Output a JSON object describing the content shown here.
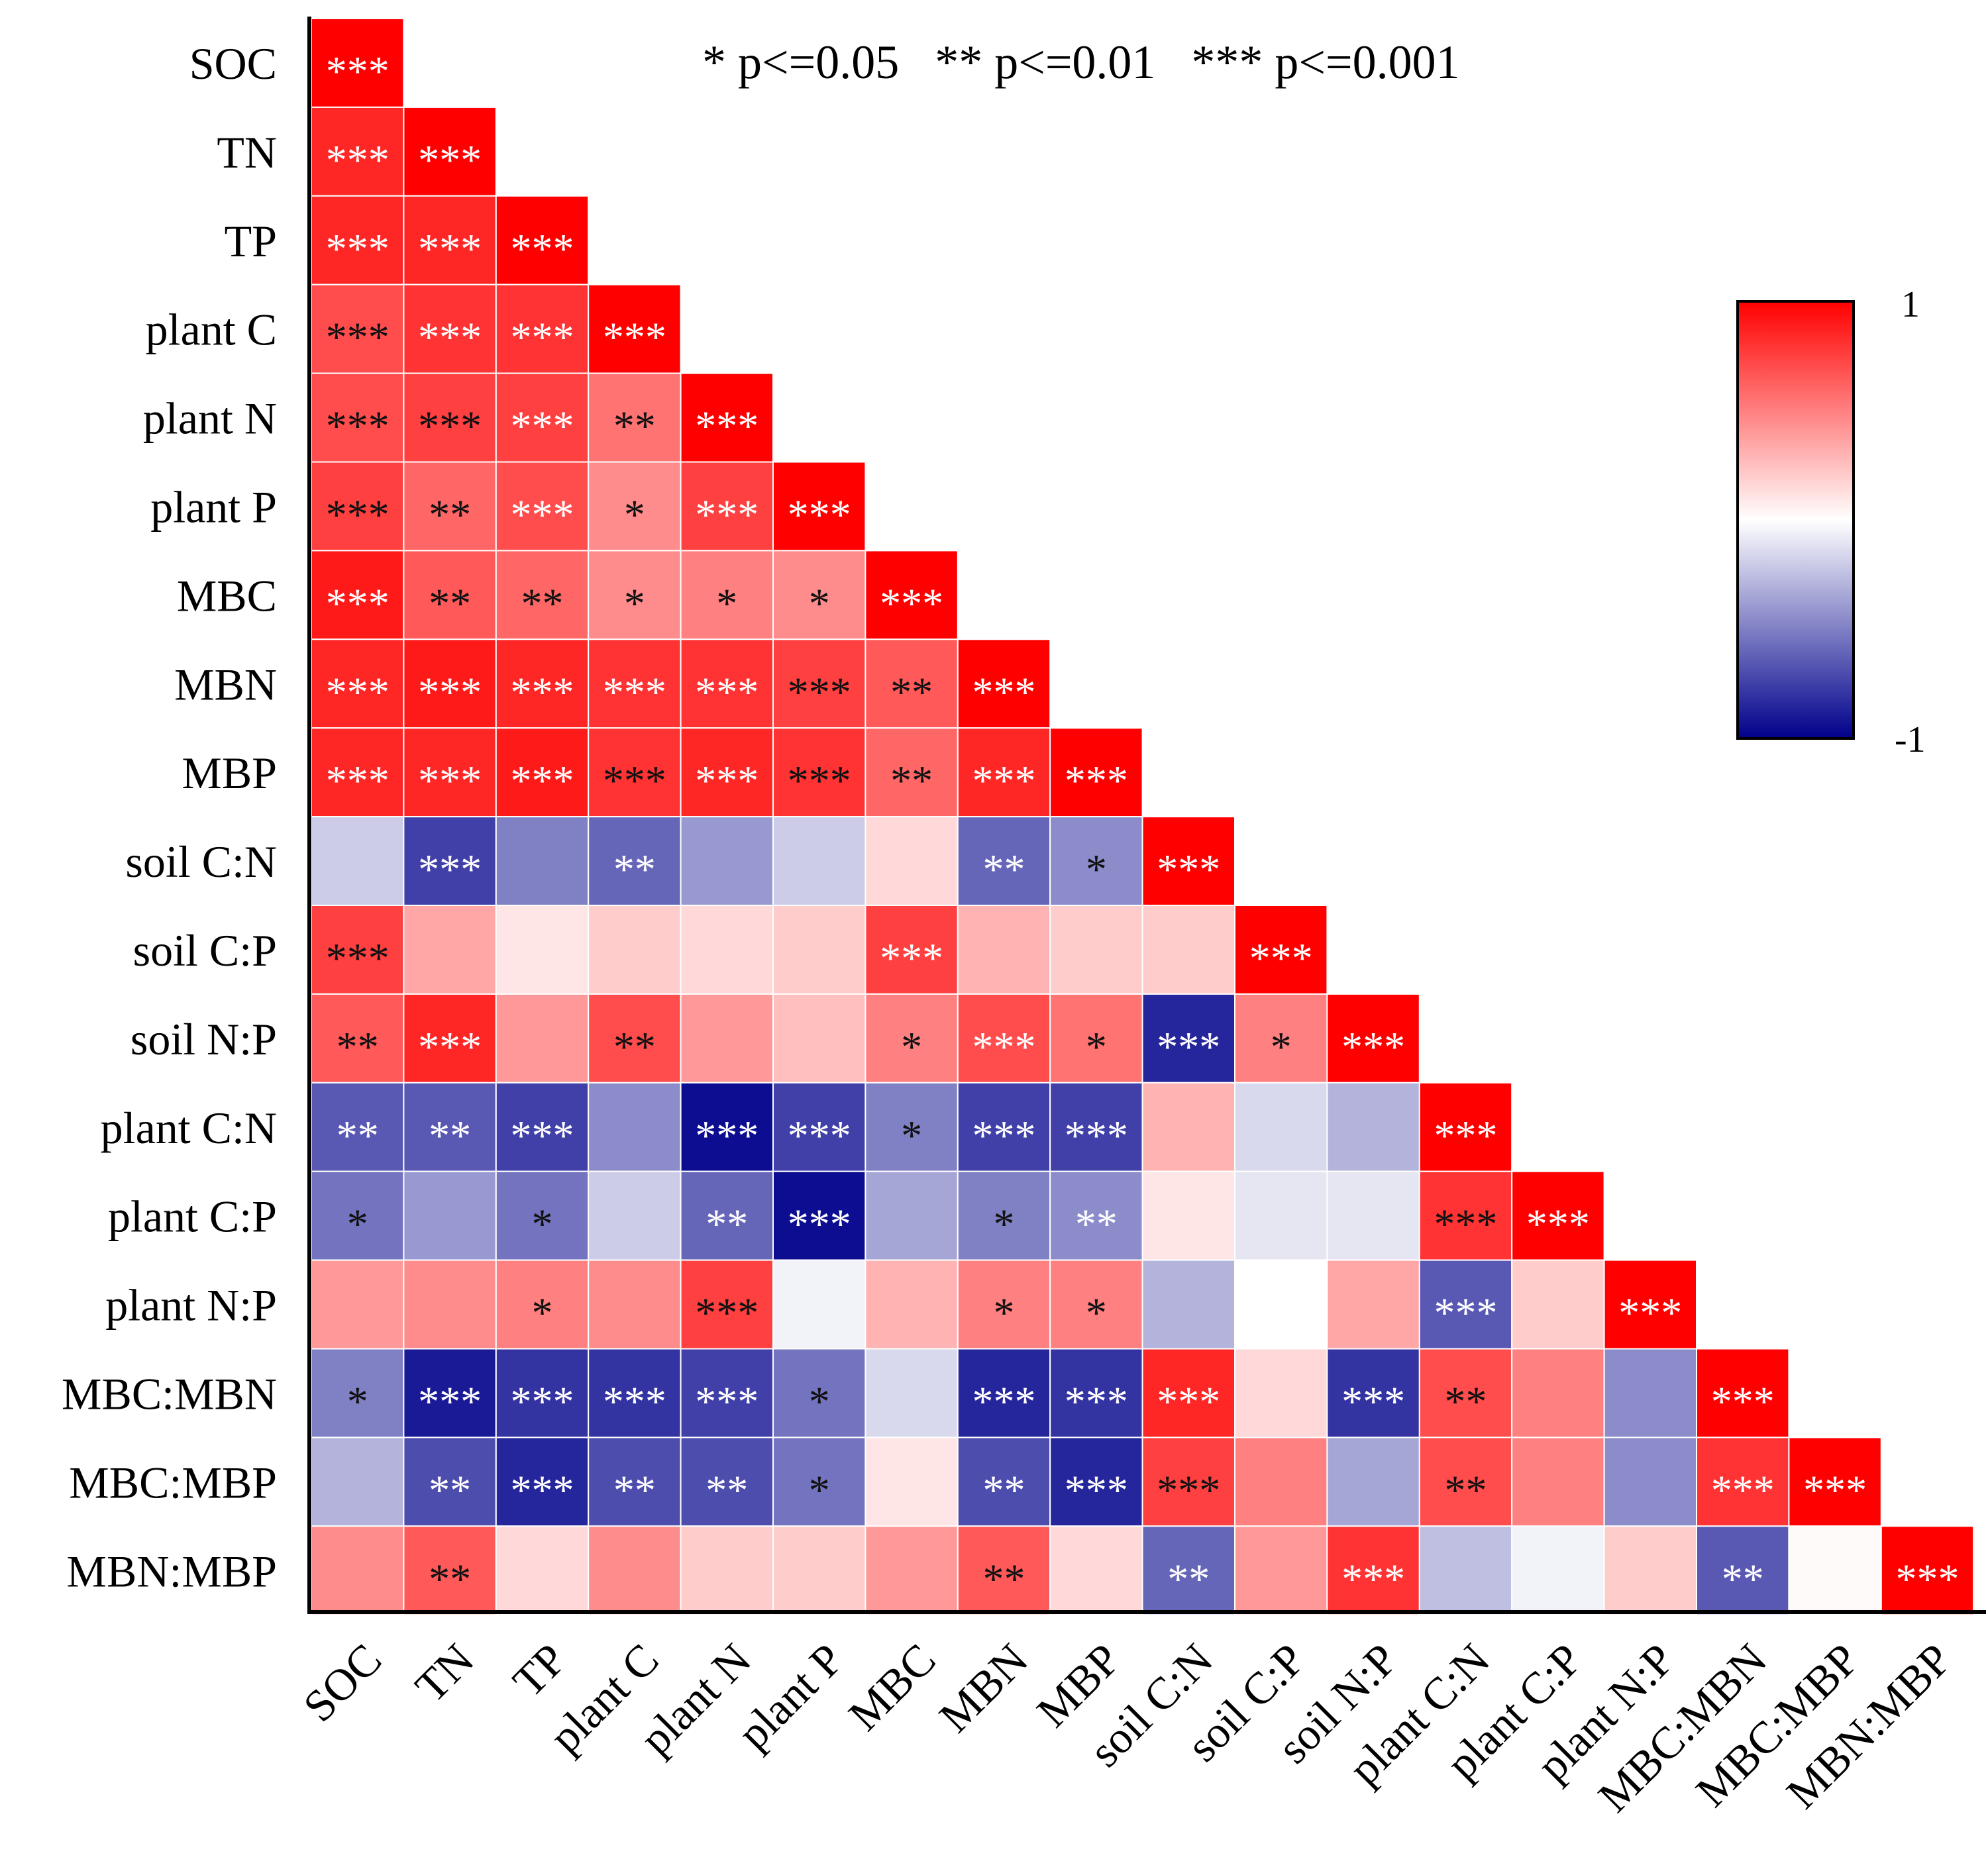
{
  "chart_data": {
    "type": "heatmap",
    "title": "",
    "legend_text": "* p<=0.05   ** p<=0.01   *** p<=0.001",
    "colorbar": {
      "max_label": "1",
      "min_label": "-1",
      "range": [
        -1,
        1
      ],
      "colors": [
        "#00008b",
        "#ffffff",
        "#ff0000"
      ]
    },
    "labels": [
      "SOC",
      "TN",
      "TP",
      "plant C",
      "plant N",
      "plant P",
      "MBC",
      "MBN",
      "MBP",
      "soil C:N",
      "soil C:P",
      "soil N:P",
      "plant C:N",
      "plant C:P",
      "plant N:P",
      "MBC:MBN",
      "MBC:MBP",
      "MBN:MBP"
    ],
    "matrix": [
      [
        1.0
      ],
      [
        0.85,
        1.0
      ],
      [
        0.85,
        0.85,
        1.0
      ],
      [
        0.7,
        0.8,
        0.8,
        1.0
      ],
      [
        0.7,
        0.75,
        0.75,
        0.55,
        1.0
      ],
      [
        0.75,
        0.6,
        0.7,
        0.45,
        0.75,
        1.0
      ],
      [
        0.9,
        0.65,
        0.6,
        0.45,
        0.5,
        0.45,
        1.0
      ],
      [
        0.85,
        0.9,
        0.85,
        0.8,
        0.8,
        0.75,
        0.65,
        1.0
      ],
      [
        0.85,
        0.85,
        0.9,
        0.8,
        0.85,
        0.8,
        0.6,
        0.85,
        1.0
      ],
      [
        -0.2,
        -0.75,
        -0.5,
        -0.6,
        -0.4,
        -0.2,
        0.15,
        -0.6,
        -0.45,
        1.0
      ],
      [
        0.75,
        0.35,
        0.1,
        0.2,
        0.15,
        0.2,
        0.75,
        0.3,
        0.2,
        0.2,
        1.0
      ],
      [
        0.65,
        0.85,
        0.4,
        0.7,
        0.4,
        0.25,
        0.5,
        0.7,
        0.55,
        -0.85,
        0.5,
        1.0
      ],
      [
        -0.65,
        -0.65,
        -0.75,
        -0.45,
        -0.95,
        -0.75,
        -0.5,
        -0.75,
        -0.75,
        0.3,
        -0.15,
        -0.3,
        1.0
      ],
      [
        -0.55,
        -0.4,
        -0.55,
        -0.2,
        -0.6,
        -0.95,
        -0.35,
        -0.5,
        -0.45,
        0.1,
        -0.1,
        -0.1,
        0.8,
        1.0
      ],
      [
        0.4,
        0.45,
        0.5,
        0.45,
        0.75,
        -0.05,
        0.3,
        0.5,
        0.5,
        -0.3,
        0.0,
        0.35,
        -0.65,
        0.2,
        1.0
      ],
      [
        -0.5,
        -0.9,
        -0.8,
        -0.8,
        -0.75,
        -0.55,
        -0.15,
        -0.85,
        -0.8,
        0.85,
        0.15,
        -0.8,
        0.7,
        0.5,
        -0.45,
        1.0
      ],
      [
        -0.3,
        -0.7,
        -0.85,
        -0.7,
        -0.7,
        -0.55,
        0.1,
        -0.7,
        -0.85,
        0.75,
        0.5,
        -0.35,
        0.7,
        0.5,
        -0.45,
        0.8,
        1.0
      ],
      [
        0.45,
        0.65,
        0.15,
        0.45,
        0.2,
        0.2,
        0.4,
        0.65,
        0.15,
        -0.6,
        0.4,
        0.8,
        -0.25,
        -0.05,
        0.2,
        -0.65,
        0.02,
        1.0
      ]
    ],
    "significance": [
      [
        "***"
      ],
      [
        "***",
        "***"
      ],
      [
        "***",
        "***",
        "***"
      ],
      [
        "***",
        "***",
        "***",
        "***"
      ],
      [
        "***",
        "***",
        "***",
        "**",
        "***"
      ],
      [
        "***",
        "**",
        "***",
        "*",
        "***",
        "***"
      ],
      [
        "***",
        "**",
        "**",
        "*",
        "*",
        "*",
        "***"
      ],
      [
        "***",
        "***",
        "***",
        "***",
        "***",
        "***",
        "**",
        "***"
      ],
      [
        "***",
        "***",
        "***",
        "***",
        "***",
        "***",
        "**",
        "***",
        "***"
      ],
      [
        "",
        "***",
        "",
        "**",
        "",
        "",
        "",
        "**",
        "*",
        "***"
      ],
      [
        "***",
        "",
        "",
        "",
        "",
        "",
        "***",
        "",
        "",
        "",
        "***"
      ],
      [
        "**",
        "***",
        "",
        "**",
        "",
        "",
        "*",
        "***",
        "*",
        "***",
        "*",
        "***"
      ],
      [
        "**",
        "**",
        "***",
        "",
        "***",
        "***",
        "*",
        "***",
        "***",
        "",
        "",
        "",
        "***"
      ],
      [
        "*",
        "",
        "*",
        "",
        "**",
        "***",
        "",
        "*",
        "**",
        "",
        "",
        "",
        "***",
        "***"
      ],
      [
        "",
        "",
        "*",
        "",
        "***",
        "",
        "",
        "*",
        "*",
        "",
        "",
        "",
        "***",
        "",
        "***"
      ],
      [
        "*",
        "***",
        "***",
        "***",
        "***",
        "*",
        "",
        "***",
        "***",
        "***",
        "",
        "***",
        "**",
        "",
        "",
        "***"
      ],
      [
        "",
        "**",
        "***",
        "**",
        "**",
        "*",
        "",
        "**",
        "***",
        "***",
        "",
        "",
        "**",
        "",
        "",
        "***",
        "***"
      ],
      [
        "",
        "**",
        "",
        "",
        "",
        "",
        "",
        "**",
        "",
        "**",
        "",
        "***",
        "",
        "",
        "",
        "**",
        "",
        "***"
      ]
    ],
    "star_color": [
      [
        "w"
      ],
      [
        "w",
        "w"
      ],
      [
        "w",
        "w",
        "w"
      ],
      [
        "k",
        "w",
        "w",
        "w"
      ],
      [
        "k",
        "k",
        "w",
        "k",
        "w"
      ],
      [
        "k",
        "k",
        "w",
        "k",
        "w",
        "w"
      ],
      [
        "w",
        "k",
        "k",
        "k",
        "k",
        "k",
        "w"
      ],
      [
        "w",
        "w",
        "w",
        "w",
        "w",
        "k",
        "k",
        "w"
      ],
      [
        "w",
        "w",
        "w",
        "k",
        "w",
        "k",
        "k",
        "w",
        "w"
      ],
      [
        "",
        "w",
        "",
        "w",
        "",
        "",
        "",
        "w",
        "k",
        "w"
      ],
      [
        "k",
        "",
        "",
        "",
        "",
        "",
        "w",
        "",
        "",
        "",
        "w"
      ],
      [
        "k",
        "w",
        "",
        "k",
        "",
        "",
        "k",
        "w",
        "k",
        "w",
        "k",
        "w"
      ],
      [
        "w",
        "w",
        "w",
        "",
        "w",
        "w",
        "k",
        "w",
        "w",
        "",
        "",
        "",
        "w"
      ],
      [
        "k",
        "",
        "k",
        "",
        "w",
        "w",
        "",
        "k",
        "w",
        "",
        "",
        "",
        "k",
        "w"
      ],
      [
        "",
        "",
        "k",
        "",
        "k",
        "",
        "",
        "k",
        "k",
        "",
        "",
        "",
        "w",
        "",
        "w"
      ],
      [
        "k",
        "w",
        "w",
        "w",
        "w",
        "k",
        "",
        "w",
        "w",
        "w",
        "",
        "w",
        "k",
        "",
        "",
        "w"
      ],
      [
        "",
        "w",
        "w",
        "w",
        "w",
        "k",
        "",
        "w",
        "w",
        "k",
        "",
        "",
        "k",
        "",
        "",
        "w",
        "w"
      ],
      [
        "",
        "k",
        "",
        "",
        "",
        "",
        "",
        "k",
        "",
        "w",
        "",
        "w",
        "",
        "",
        "",
        "w",
        "",
        "w"
      ]
    ]
  }
}
